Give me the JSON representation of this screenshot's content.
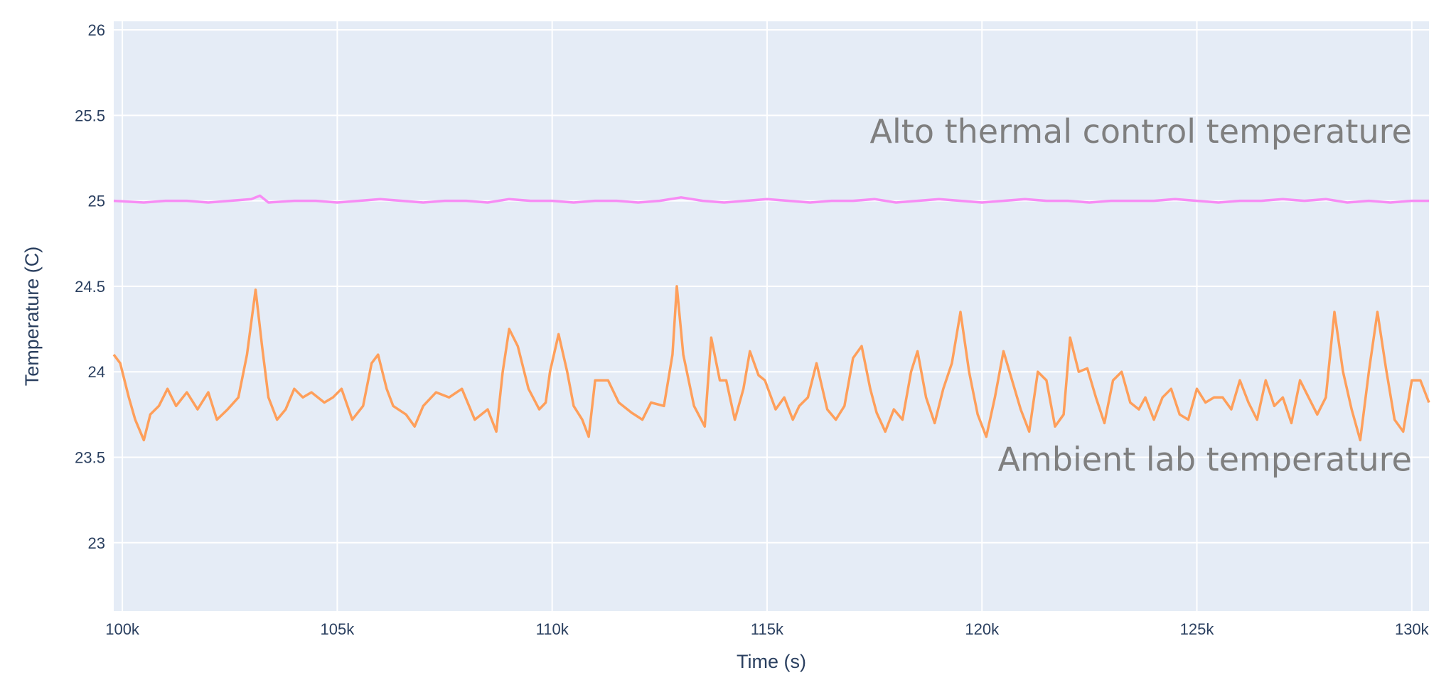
{
  "chart_data": {
    "type": "line",
    "title": "",
    "xlabel": "Time (s)",
    "ylabel": "Temperature (C)",
    "xlim": [
      99800,
      130400
    ],
    "ylim": [
      22.6,
      26.05
    ],
    "grid": true,
    "legend": "none",
    "plot_bg": "#e5ecf6",
    "grid_color": "#ffffff",
    "x_ticks": [
      {
        "v": 100000,
        "label": "100k"
      },
      {
        "v": 105000,
        "label": "105k"
      },
      {
        "v": 110000,
        "label": "110k"
      },
      {
        "v": 115000,
        "label": "115k"
      },
      {
        "v": 120000,
        "label": "120k"
      },
      {
        "v": 125000,
        "label": "125k"
      },
      {
        "v": 130000,
        "label": "130k"
      }
    ],
    "y_ticks": [
      {
        "v": 23,
        "label": "23"
      },
      {
        "v": 23.5,
        "label": "23.5"
      },
      {
        "v": 24,
        "label": "24"
      },
      {
        "v": 24.5,
        "label": "24.5"
      },
      {
        "v": 25,
        "label": "25"
      },
      {
        "v": 25.5,
        "label": "25.5"
      },
      {
        "v": 26,
        "label": "26"
      }
    ],
    "annotations": [
      {
        "text": "Alto thermal control temperature",
        "x": 130000,
        "y": 25.34,
        "anchor": "end"
      },
      {
        "text": "Ambient lab temperature",
        "x": 130000,
        "y": 23.42,
        "anchor": "end"
      }
    ],
    "series": [
      {
        "color": "#f78cf4",
        "x": [
          99800,
          100500,
          101000,
          101500,
          102000,
          102500,
          103000,
          103200,
          103400,
          104000,
          104500,
          105000,
          105500,
          106000,
          106500,
          107000,
          107500,
          108000,
          108500,
          109000,
          109500,
          110000,
          110500,
          111000,
          111500,
          112000,
          112500,
          113000,
          113500,
          114000,
          114500,
          115000,
          115500,
          116000,
          116500,
          117000,
          117500,
          118000,
          118500,
          119000,
          119500,
          120000,
          120500,
          121000,
          121500,
          122000,
          122500,
          123000,
          123500,
          124000,
          124500,
          125000,
          125500,
          126000,
          126500,
          127000,
          127500,
          128000,
          128500,
          129000,
          129500,
          130000,
          130400
        ],
        "values": [
          25.0,
          24.99,
          25.0,
          25.0,
          24.99,
          25.0,
          25.01,
          25.03,
          24.99,
          25.0,
          25.0,
          24.99,
          25.0,
          25.01,
          25.0,
          24.99,
          25.0,
          25.0,
          24.99,
          25.01,
          25.0,
          25.0,
          24.99,
          25.0,
          25.0,
          24.99,
          25.0,
          25.02,
          25.0,
          24.99,
          25.0,
          25.01,
          25.0,
          24.99,
          25.0,
          25.0,
          25.01,
          24.99,
          25.0,
          25.01,
          25.0,
          24.99,
          25.0,
          25.01,
          25.0,
          25.0,
          24.99,
          25.0,
          25.0,
          25.0,
          25.01,
          25.0,
          24.99,
          25.0,
          25.0,
          25.01,
          25.0,
          25.01,
          24.99,
          25.0,
          24.99,
          25.0,
          25.0
        ]
      },
      {
        "color": "#fe9f5b",
        "x": [
          99800,
          99950,
          100150,
          100300,
          100500,
          100650,
          100850,
          101050,
          101250,
          101500,
          101750,
          102000,
          102200,
          102450,
          102700,
          102900,
          103100,
          103250,
          103400,
          103600,
          103800,
          104000,
          104200,
          104400,
          104700,
          104900,
          105100,
          105350,
          105600,
          105800,
          105950,
          106150,
          106300,
          106600,
          106800,
          107000,
          107300,
          107600,
          107900,
          108200,
          108500,
          108700,
          108850,
          109000,
          109200,
          109450,
          109700,
          109850,
          109950,
          110150,
          110350,
          110500,
          110700,
          110850,
          111000,
          111300,
          111550,
          111850,
          112100,
          112300,
          112600,
          112800,
          112900,
          113050,
          113300,
          113550,
          113700,
          113900,
          114050,
          114250,
          114450,
          114600,
          114800,
          114950,
          115200,
          115400,
          115600,
          115750,
          115950,
          116150,
          116400,
          116600,
          116800,
          117000,
          117200,
          117400,
          117550,
          117750,
          117950,
          118150,
          118350,
          118500,
          118700,
          118900,
          119100,
          119300,
          119500,
          119700,
          119900,
          120100,
          120300,
          120500,
          120700,
          120900,
          121100,
          121300,
          121500,
          121700,
          121900,
          122050,
          122250,
          122450,
          122650,
          122850,
          123050,
          123250,
          123450,
          123650,
          123800,
          124000,
          124200,
          124400,
          124600,
          124800,
          125000,
          125200,
          125400,
          125600,
          125800,
          126000,
          126200,
          126400,
          126600,
          126800,
          127000,
          127200,
          127400,
          127600,
          127800,
          128000,
          128200,
          128400,
          128600,
          128800,
          129000,
          129200,
          129400,
          129600,
          129800,
          130000,
          130200,
          130400
        ],
        "values": [
          24.1,
          24.05,
          23.85,
          23.72,
          23.6,
          23.75,
          23.8,
          23.9,
          23.8,
          23.88,
          23.78,
          23.88,
          23.72,
          23.78,
          23.85,
          24.1,
          24.48,
          24.15,
          23.85,
          23.72,
          23.78,
          23.9,
          23.85,
          23.88,
          23.82,
          23.85,
          23.9,
          23.72,
          23.8,
          24.05,
          24.1,
          23.9,
          23.8,
          23.75,
          23.68,
          23.8,
          23.88,
          23.85,
          23.9,
          23.72,
          23.78,
          23.65,
          24.0,
          24.25,
          24.15,
          23.9,
          23.78,
          23.82,
          24.0,
          24.22,
          24.0,
          23.8,
          23.72,
          23.62,
          23.95,
          23.95,
          23.82,
          23.76,
          23.72,
          23.82,
          23.8,
          24.1,
          24.5,
          24.1,
          23.8,
          23.68,
          24.2,
          23.95,
          23.95,
          23.72,
          23.9,
          24.12,
          23.98,
          23.95,
          23.78,
          23.85,
          23.72,
          23.8,
          23.85,
          24.05,
          23.78,
          23.72,
          23.8,
          24.08,
          24.15,
          23.9,
          23.76,
          23.65,
          23.78,
          23.72,
          24.0,
          24.12,
          23.85,
          23.7,
          23.9,
          24.05,
          24.35,
          24.0,
          23.75,
          23.62,
          23.85,
          24.12,
          23.95,
          23.78,
          23.65,
          24.0,
          23.95,
          23.68,
          23.75,
          24.2,
          24.0,
          24.02,
          23.85,
          23.7,
          23.95,
          24.0,
          23.82,
          23.78,
          23.85,
          23.72,
          23.85,
          23.9,
          23.75,
          23.72,
          23.9,
          23.82,
          23.85,
          23.85,
          23.78,
          23.95,
          23.82,
          23.72,
          23.95,
          23.8,
          23.85,
          23.7,
          23.95,
          23.85,
          23.75,
          23.85,
          24.35,
          24.0,
          23.78,
          23.6,
          24.0,
          24.35,
          24.02,
          23.72,
          23.65,
          23.95,
          23.95,
          23.82
        ]
      }
    ]
  }
}
